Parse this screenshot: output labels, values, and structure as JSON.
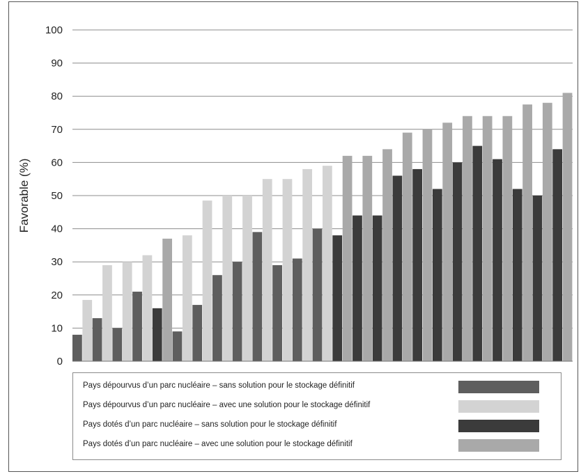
{
  "chart_data": {
    "type": "bar",
    "title": "",
    "xlabel": "",
    "ylabel": "Favorable (%)",
    "ylim": [
      0,
      100
    ],
    "yticks": [
      0,
      10,
      20,
      30,
      40,
      50,
      60,
      70,
      80,
      90,
      100
    ],
    "grid": true,
    "legend_position": "bottom",
    "series": [
      {
        "name": "Pays dépourvus d’un parc nucléaire – sans solution pour le stockage définitif",
        "color": "#5e5e5e"
      },
      {
        "name": "Pays dépourvus d’un parc nucléaire – avec une solution pour le stockage définitif",
        "color": "#d3d3d3"
      },
      {
        "name": "Pays dotés d’un parc nucléaire – sans solution pour le stockage définitif",
        "color": "#3b3b3b"
      },
      {
        "name": "Pays dotés d’un parc nucléaire – avec une solution pour le stockage définitif",
        "color": "#a9a9a9"
      }
    ],
    "bars": [
      {
        "series": 0,
        "value": 8
      },
      {
        "series": 1,
        "value": 18.5
      },
      {
        "series": 0,
        "value": 13
      },
      {
        "series": 1,
        "value": 29
      },
      {
        "series": 0,
        "value": 10
      },
      {
        "series": 1,
        "value": 30
      },
      {
        "series": 0,
        "value": 21
      },
      {
        "series": 1,
        "value": 32
      },
      {
        "series": 2,
        "value": 16
      },
      {
        "series": 3,
        "value": 37
      },
      {
        "series": 0,
        "value": 9
      },
      {
        "series": 1,
        "value": 38
      },
      {
        "series": 0,
        "value": 17
      },
      {
        "series": 1,
        "value": 48.5
      },
      {
        "series": 0,
        "value": 26
      },
      {
        "series": 1,
        "value": 50
      },
      {
        "series": 0,
        "value": 30
      },
      {
        "series": 1,
        "value": 50
      },
      {
        "series": 0,
        "value": 39
      },
      {
        "series": 1,
        "value": 55
      },
      {
        "series": 0,
        "value": 29
      },
      {
        "series": 1,
        "value": 55
      },
      {
        "series": 0,
        "value": 31
      },
      {
        "series": 1,
        "value": 58
      },
      {
        "series": 0,
        "value": 40
      },
      {
        "series": 1,
        "value": 59
      },
      {
        "series": 2,
        "value": 38
      },
      {
        "series": 3,
        "value": 62
      },
      {
        "series": 2,
        "value": 44
      },
      {
        "series": 3,
        "value": 62
      },
      {
        "series": 2,
        "value": 44
      },
      {
        "series": 3,
        "value": 64
      },
      {
        "series": 2,
        "value": 56
      },
      {
        "series": 3,
        "value": 69
      },
      {
        "series": 2,
        "value": 58
      },
      {
        "series": 3,
        "value": 70
      },
      {
        "series": 2,
        "value": 52
      },
      {
        "series": 3,
        "value": 72
      },
      {
        "series": 2,
        "value": 60
      },
      {
        "series": 3,
        "value": 74
      },
      {
        "series": 2,
        "value": 65
      },
      {
        "series": 3,
        "value": 74
      },
      {
        "series": 2,
        "value": 61
      },
      {
        "series": 3,
        "value": 74
      },
      {
        "series": 2,
        "value": 52
      },
      {
        "series": 3,
        "value": 77.5
      },
      {
        "series": 2,
        "value": 50
      },
      {
        "series": 3,
        "value": 78
      },
      {
        "series": 2,
        "value": 64
      },
      {
        "series": 3,
        "value": 81
      }
    ]
  }
}
